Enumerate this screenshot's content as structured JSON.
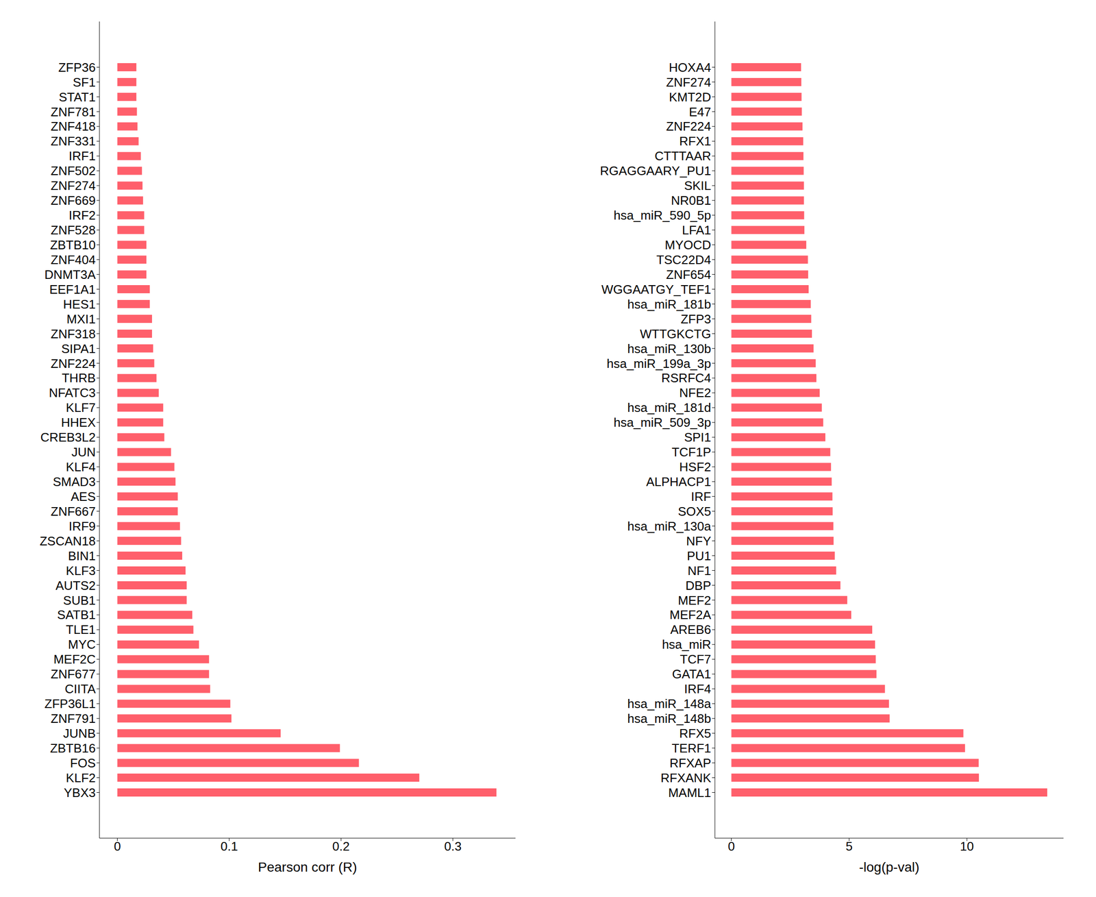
{
  "chart_data": [
    {
      "type": "bar",
      "orientation": "horizontal",
      "xlabel": "Pearson corr (R)",
      "color": "#ff5f6b",
      "xlim": [
        -0.016,
        0.356
      ],
      "xticks": [
        0,
        0.1,
        0.2,
        0.3
      ],
      "categories": [
        "ZFP36",
        "SF1",
        "STAT1",
        "ZNF781",
        "ZNF418",
        "ZNF331",
        "IRF1",
        "ZNF502",
        "ZNF274",
        "ZNF669",
        "IRF2",
        "ZNF528",
        "ZBTB10",
        "ZNF404",
        "DNMT3A",
        "EEF1A1",
        "HES1",
        "MXI1",
        "ZNF318",
        "SIPA1",
        "ZNF224",
        "THRB",
        "NFATC3",
        "KLF7",
        "HHEX",
        "CREB3L2",
        "JUN",
        "KLF4",
        "SMAD3",
        "AES",
        "ZNF667",
        "IRF9",
        "ZSCAN18",
        "BIN1",
        "KLF3",
        "AUTS2",
        "SUB1",
        "SATB1",
        "TLE1",
        "MYC",
        "MEF2C",
        "ZNF677",
        "CIITA",
        "ZFP36L1",
        "ZNF791",
        "JUNB",
        "ZBTB16",
        "FOS",
        "KLF2",
        "YBX3"
      ],
      "values": [
        0.017,
        0.017,
        0.017,
        0.0175,
        0.018,
        0.019,
        0.021,
        0.022,
        0.0225,
        0.023,
        0.024,
        0.024,
        0.026,
        0.026,
        0.026,
        0.029,
        0.029,
        0.031,
        0.031,
        0.032,
        0.033,
        0.035,
        0.037,
        0.041,
        0.041,
        0.042,
        0.048,
        0.051,
        0.052,
        0.054,
        0.054,
        0.056,
        0.057,
        0.058,
        0.061,
        0.062,
        0.062,
        0.067,
        0.068,
        0.073,
        0.082,
        0.082,
        0.083,
        0.101,
        0.102,
        0.146,
        0.199,
        0.216,
        0.27,
        0.339
      ]
    },
    {
      "type": "bar",
      "orientation": "horizontal",
      "xlabel": "-log(p-val)",
      "color": "#ff5f6b",
      "xlim": [
        -0.7,
        14.1
      ],
      "xticks": [
        0,
        5,
        10
      ],
      "categories": [
        "HOXA4",
        "ZNF274",
        "KMT2D",
        "E47",
        "ZNF224",
        "RFX1",
        "CTTTAAR",
        "RGAGGAARY_PU1",
        "SKIL",
        "NR0B1",
        "hsa_miR_590_5p",
        "LFA1",
        "MYOCD",
        "TSC22D4",
        "ZNF654",
        "WGGAATGY_TEF1",
        "hsa_miR_181b",
        "ZFP3",
        "WTTGKCTG",
        "hsa_miR_130b",
        "hsa_miR_199a_3p",
        "RSRFC4",
        "NFE2",
        "hsa_miR_181d",
        "hsa_miR_509_3p",
        "SPI1",
        "TCF1P",
        "HSF2",
        "ALPHACP1",
        "IRF",
        "SOX5",
        "hsa_miR_130a",
        "NFY",
        "PU1",
        "NF1",
        "DBP",
        "MEF2",
        "MEF2A",
        "AREB6",
        "hsa_miR",
        "TCF7",
        "GATA1",
        "IRF4",
        "hsa_miR_148a",
        "hsa_miR_148b",
        "RFX5",
        "TERF1",
        "RFXAP",
        "RFXANK",
        "MAML1"
      ],
      "values": [
        2.96,
        2.97,
        2.98,
        2.99,
        3.02,
        3.05,
        3.06,
        3.07,
        3.08,
        3.08,
        3.09,
        3.1,
        3.18,
        3.25,
        3.26,
        3.28,
        3.37,
        3.39,
        3.42,
        3.49,
        3.58,
        3.61,
        3.75,
        3.84,
        3.9,
        3.99,
        4.2,
        4.23,
        4.26,
        4.29,
        4.3,
        4.33,
        4.34,
        4.39,
        4.45,
        4.63,
        4.92,
        5.09,
        5.98,
        6.1,
        6.13,
        6.16,
        6.52,
        6.69,
        6.72,
        9.85,
        9.92,
        10.5,
        10.51,
        13.41
      ]
    }
  ]
}
